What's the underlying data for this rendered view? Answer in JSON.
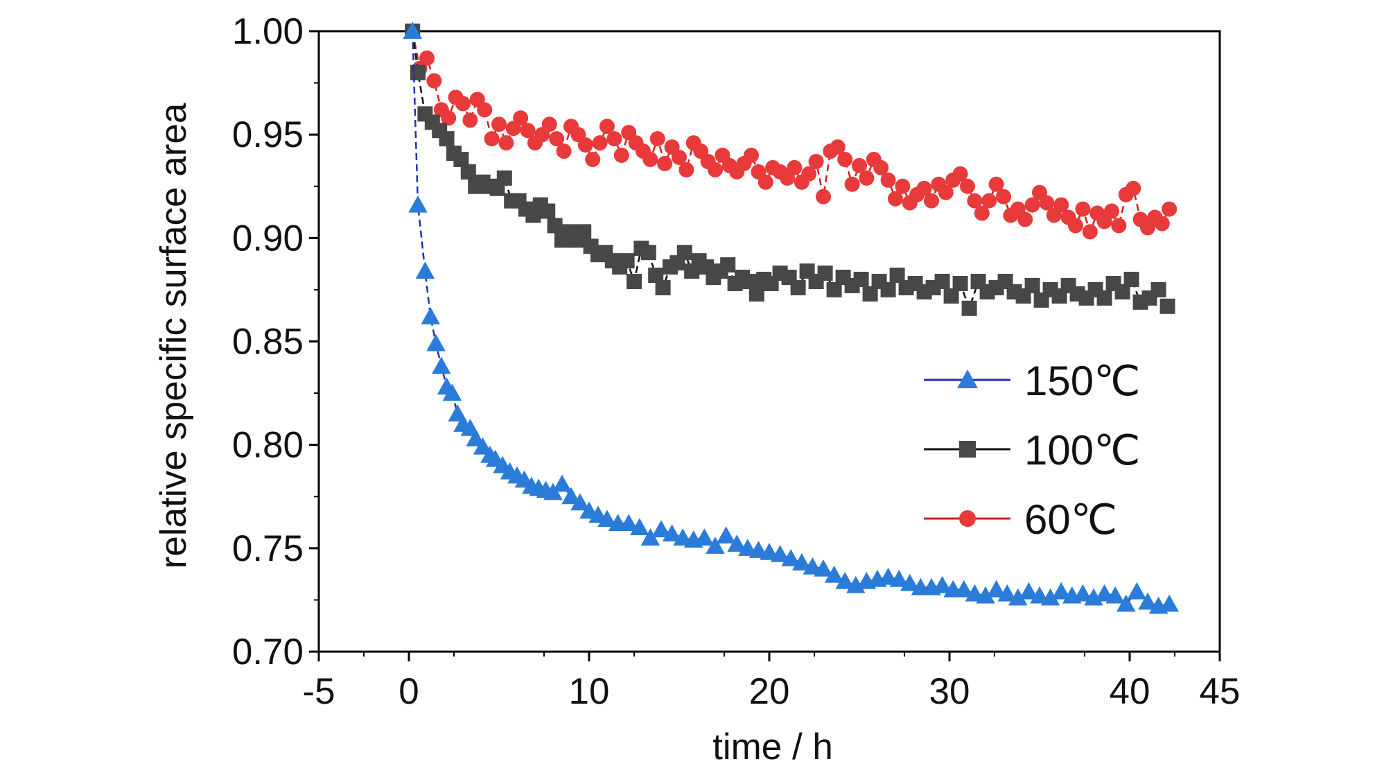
{
  "chart_data": {
    "type": "scatter",
    "xlabel": "time / h",
    "ylabel": "relative specific surface area",
    "xlim": [
      -5,
      45
    ],
    "ylim": [
      0.7,
      1.0
    ],
    "xticks": [
      {
        "value": -5,
        "label": "-5"
      },
      {
        "value": 0,
        "label": "0"
      },
      {
        "value": 10,
        "label": "10"
      },
      {
        "value": 20,
        "label": "20"
      },
      {
        "value": 30,
        "label": "30"
      },
      {
        "value": 40,
        "label": "40"
      },
      {
        "value": 45,
        "label": "45"
      }
    ],
    "yticks": [
      {
        "value": 0.7,
        "label": "0.70"
      },
      {
        "value": 0.75,
        "label": "0.75"
      },
      {
        "value": 0.8,
        "label": "0.80"
      },
      {
        "value": 0.85,
        "label": "0.85"
      },
      {
        "value": 0.9,
        "label": "0.90"
      },
      {
        "value": 0.95,
        "label": "0.95"
      },
      {
        "value": 1.0,
        "label": "1.00"
      }
    ],
    "grid": false,
    "legend_position": "right",
    "series": [
      {
        "name": "150℃",
        "marker": "triangle",
        "marker_color": "#2b7bd8",
        "line_color": "#1f2fb8",
        "x": [
          0.2,
          0.5,
          0.9,
          1.2,
          1.5,
          1.8,
          2.1,
          2.4,
          2.7,
          3.0,
          3.4,
          3.7,
          4.1,
          4.5,
          4.8,
          5.2,
          5.6,
          6.0,
          6.4,
          6.8,
          7.2,
          7.6,
          8.0,
          8.5,
          9.0,
          9.5,
          10.0,
          10.5,
          11.0,
          11.6,
          12.2,
          12.8,
          13.4,
          14.0,
          14.6,
          15.2,
          15.8,
          16.4,
          17.0,
          17.6,
          18.2,
          18.8,
          19.4,
          20.0,
          20.6,
          21.2,
          21.8,
          22.4,
          23.0,
          23.6,
          24.2,
          24.8,
          25.4,
          26.0,
          26.6,
          27.2,
          27.8,
          28.4,
          29.0,
          29.6,
          30.2,
          30.8,
          31.4,
          32.0,
          32.6,
          33.2,
          33.8,
          34.4,
          35.0,
          35.6,
          36.2,
          36.8,
          37.4,
          38.0,
          38.6,
          39.2,
          39.8,
          40.4,
          41.0,
          41.6,
          42.2
        ],
        "y": [
          1.0,
          0.916,
          0.884,
          0.862,
          0.849,
          0.838,
          0.828,
          0.825,
          0.815,
          0.81,
          0.808,
          0.803,
          0.799,
          0.795,
          0.793,
          0.79,
          0.787,
          0.785,
          0.783,
          0.78,
          0.779,
          0.778,
          0.777,
          0.781,
          0.775,
          0.772,
          0.768,
          0.766,
          0.764,
          0.762,
          0.762,
          0.76,
          0.755,
          0.759,
          0.757,
          0.755,
          0.754,
          0.755,
          0.751,
          0.756,
          0.752,
          0.75,
          0.749,
          0.748,
          0.747,
          0.745,
          0.743,
          0.741,
          0.74,
          0.737,
          0.734,
          0.732,
          0.734,
          0.735,
          0.736,
          0.735,
          0.733,
          0.731,
          0.731,
          0.732,
          0.73,
          0.73,
          0.728,
          0.727,
          0.73,
          0.728,
          0.726,
          0.729,
          0.727,
          0.726,
          0.729,
          0.727,
          0.728,
          0.726,
          0.728,
          0.727,
          0.723,
          0.729,
          0.724,
          0.722,
          0.723
        ]
      },
      {
        "name": "100℃",
        "marker": "square",
        "marker_color": "#474747",
        "line_color": "#111111",
        "x": [
          0.2,
          0.5,
          0.9,
          1.3,
          1.7,
          2.1,
          2.5,
          2.9,
          3.3,
          3.7,
          4.1,
          4.5,
          4.9,
          5.3,
          5.7,
          6.1,
          6.5,
          6.9,
          7.3,
          7.7,
          8.1,
          8.5,
          8.9,
          9.3,
          9.7,
          10.1,
          10.5,
          10.9,
          11.3,
          11.7,
          12.1,
          12.5,
          12.9,
          13.3,
          13.7,
          14.1,
          14.5,
          14.9,
          15.3,
          15.7,
          16.1,
          16.5,
          16.9,
          17.3,
          17.7,
          18.1,
          18.5,
          18.9,
          19.3,
          19.7,
          20.1,
          20.6,
          21.1,
          21.6,
          22.1,
          22.6,
          23.1,
          23.6,
          24.1,
          24.6,
          25.1,
          25.6,
          26.1,
          26.6,
          27.1,
          27.6,
          28.1,
          28.6,
          29.1,
          29.6,
          30.1,
          30.6,
          31.1,
          31.6,
          32.1,
          32.6,
          33.1,
          33.6,
          34.1,
          34.6,
          35.1,
          35.6,
          36.1,
          36.6,
          37.1,
          37.6,
          38.1,
          38.6,
          39.1,
          39.6,
          40.1,
          40.6,
          41.1,
          41.6,
          42.1
        ],
        "y": [
          1.0,
          0.98,
          0.96,
          0.956,
          0.952,
          0.948,
          0.941,
          0.938,
          0.932,
          0.925,
          0.927,
          0.925,
          0.924,
          0.929,
          0.918,
          0.918,
          0.914,
          0.911,
          0.916,
          0.913,
          0.906,
          0.899,
          0.903,
          0.899,
          0.903,
          0.896,
          0.892,
          0.893,
          0.889,
          0.886,
          0.889,
          0.879,
          0.895,
          0.893,
          0.882,
          0.876,
          0.886,
          0.888,
          0.893,
          0.884,
          0.889,
          0.886,
          0.881,
          0.884,
          0.887,
          0.878,
          0.881,
          0.879,
          0.873,
          0.88,
          0.878,
          0.883,
          0.881,
          0.876,
          0.884,
          0.879,
          0.883,
          0.875,
          0.881,
          0.877,
          0.88,
          0.873,
          0.879,
          0.875,
          0.882,
          0.876,
          0.878,
          0.874,
          0.876,
          0.879,
          0.872,
          0.878,
          0.866,
          0.879,
          0.874,
          0.876,
          0.879,
          0.874,
          0.872,
          0.877,
          0.87,
          0.875,
          0.872,
          0.877,
          0.873,
          0.871,
          0.875,
          0.871,
          0.878,
          0.874,
          0.88,
          0.869,
          0.871,
          0.875,
          0.867
        ]
      },
      {
        "name": "60℃",
        "marker": "circle",
        "marker_color": "#e83a3a",
        "line_color": "#cc2020",
        "x": [
          0.2,
          0.6,
          1.0,
          1.4,
          1.8,
          2.2,
          2.6,
          3.0,
          3.4,
          3.8,
          4.2,
          4.6,
          5.0,
          5.4,
          5.8,
          6.2,
          6.6,
          7.0,
          7.4,
          7.8,
          8.2,
          8.6,
          9.0,
          9.4,
          9.8,
          10.2,
          10.6,
          11.0,
          11.4,
          11.8,
          12.2,
          12.6,
          13.0,
          13.4,
          13.8,
          14.2,
          14.6,
          15.0,
          15.4,
          15.8,
          16.2,
          16.6,
          17.0,
          17.4,
          17.8,
          18.2,
          18.6,
          19.0,
          19.4,
          19.8,
          20.2,
          20.6,
          21.0,
          21.4,
          21.8,
          22.2,
          22.6,
          23.0,
          23.4,
          23.8,
          24.2,
          24.6,
          25.0,
          25.4,
          25.8,
          26.2,
          26.6,
          27.0,
          27.4,
          27.8,
          28.2,
          28.6,
          29.0,
          29.4,
          29.8,
          30.2,
          30.6,
          31.0,
          31.4,
          31.8,
          32.2,
          32.6,
          33.0,
          33.4,
          33.8,
          34.2,
          34.6,
          35.0,
          35.4,
          35.8,
          36.2,
          36.6,
          37.0,
          37.4,
          37.8,
          38.2,
          38.6,
          39.0,
          39.4,
          39.8,
          40.2,
          40.6,
          41.0,
          41.4,
          41.8,
          42.2
        ],
        "y": [
          1.0,
          0.982,
          0.987,
          0.976,
          0.962,
          0.958,
          0.968,
          0.965,
          0.957,
          0.967,
          0.962,
          0.948,
          0.955,
          0.946,
          0.953,
          0.958,
          0.952,
          0.946,
          0.95,
          0.955,
          0.948,
          0.942,
          0.954,
          0.95,
          0.945,
          0.938,
          0.946,
          0.954,
          0.948,
          0.94,
          0.951,
          0.946,
          0.942,
          0.938,
          0.948,
          0.936,
          0.944,
          0.939,
          0.933,
          0.946,
          0.942,
          0.937,
          0.933,
          0.94,
          0.935,
          0.932,
          0.936,
          0.94,
          0.932,
          0.927,
          0.934,
          0.932,
          0.929,
          0.934,
          0.927,
          0.931,
          0.937,
          0.92,
          0.942,
          0.944,
          0.938,
          0.926,
          0.935,
          0.929,
          0.938,
          0.934,
          0.928,
          0.919,
          0.925,
          0.917,
          0.921,
          0.924,
          0.918,
          0.926,
          0.922,
          0.928,
          0.931,
          0.925,
          0.918,
          0.912,
          0.918,
          0.926,
          0.92,
          0.911,
          0.914,
          0.909,
          0.916,
          0.922,
          0.917,
          0.911,
          0.916,
          0.91,
          0.906,
          0.914,
          0.903,
          0.912,
          0.908,
          0.913,
          0.906,
          0.921,
          0.924,
          0.909,
          0.905,
          0.91,
          0.907,
          0.914
        ]
      }
    ]
  }
}
